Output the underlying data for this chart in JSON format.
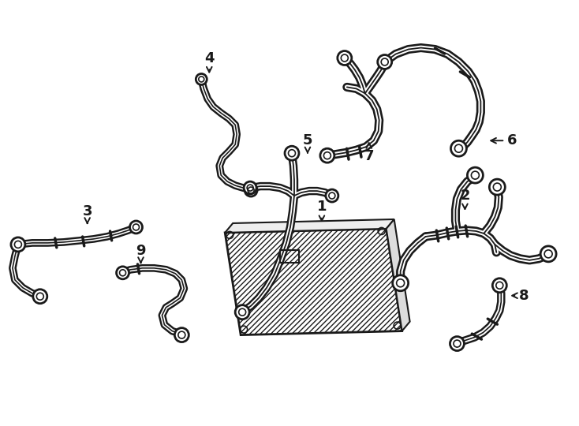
{
  "bg_color": "#ffffff",
  "line_color": "#1a1a1a",
  "fig_width": 7.34,
  "fig_height": 5.4,
  "dpi": 100,
  "font_size": 13,
  "font_weight": "bold"
}
